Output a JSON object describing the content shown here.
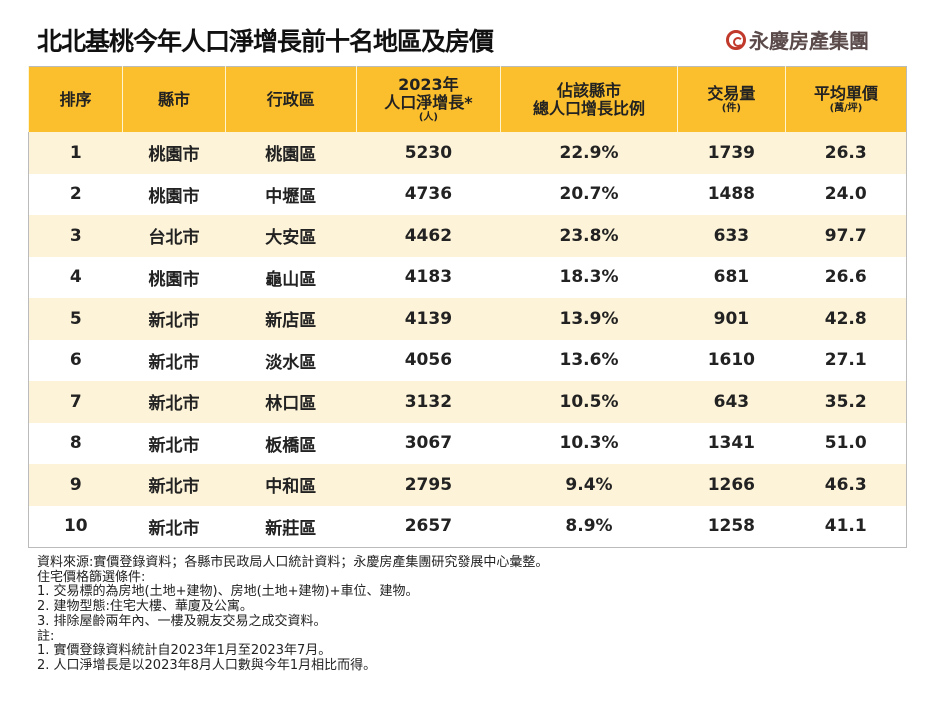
{
  "title": "北北基桃今年人口淨增長前十名地區及房價",
  "logo": "永慶房產集團",
  "headers": [
    {
      "main": "排序",
      "sub": ""
    },
    {
      "main": "縣市",
      "sub": ""
    },
    {
      "main": "行政區",
      "sub": ""
    },
    {
      "main": "2023年\n人口淨增長*",
      "sub": "(人)"
    },
    {
      "main": "佔該縣市\n總人口增長比例",
      "sub": ""
    },
    {
      "main": "交易量",
      "sub": "(件)"
    },
    {
      "main": "平均單價",
      "sub": "(萬/坪)"
    }
  ],
  "rows": [
    [
      "1",
      "桃園市",
      "桃園區",
      "5230",
      "22.9%",
      "1739",
      "26.3"
    ],
    [
      "2",
      "桃園市",
      "中壢區",
      "4736",
      "20.7%",
      "1488",
      "24.0"
    ],
    [
      "3",
      "台北市",
      "大安區",
      "4462",
      "23.8%",
      "633",
      "97.7"
    ],
    [
      "4",
      "桃園市",
      "龜山區",
      "4183",
      "18.3%",
      "681",
      "26.6"
    ],
    [
      "5",
      "新北市",
      "新店區",
      "4139",
      "13.9%",
      "901",
      "42.8"
    ],
    [
      "6",
      "新北市",
      "淡水區",
      "4056",
      "13.6%",
      "1610",
      "27.1"
    ],
    [
      "7",
      "新北市",
      "林口區",
      "3132",
      "10.5%",
      "643",
      "35.2"
    ],
    [
      "8",
      "新北市",
      "板橋區",
      "3067",
      "10.3%",
      "1341",
      "51.0"
    ],
    [
      "9",
      "新北市",
      "中和區",
      "2795",
      "9.4%",
      "1266",
      "46.3"
    ],
    [
      "10",
      "新北市",
      "新莊區",
      "2657",
      "8.9%",
      "1258",
      "41.1"
    ]
  ],
  "notes": [
    "資料來源:實價登錄資料；各縣市民政局人口統計資料；永慶房產集團研究發展中心彙整。",
    "住宅價格篩選條件:",
    "1. 交易標的為房地(土地+建物)、房地(土地+建物)+車位、建物。",
    "2. 建物型態:住宅大樓、華廈及公寓。",
    "3. 排除屋齡兩年內、一樓及親友交易之成交資料。",
    "註:",
    "1. 實價登錄資料統計自2023年1月至2023年7月。",
    "2. 人口淨增長是以2023年8月人口數與今年1月相比而得。"
  ],
  "colors": {
    "header": "#fbbf2e",
    "row_alt": "#fdf3d8",
    "logo_accent": "#c0392b"
  }
}
